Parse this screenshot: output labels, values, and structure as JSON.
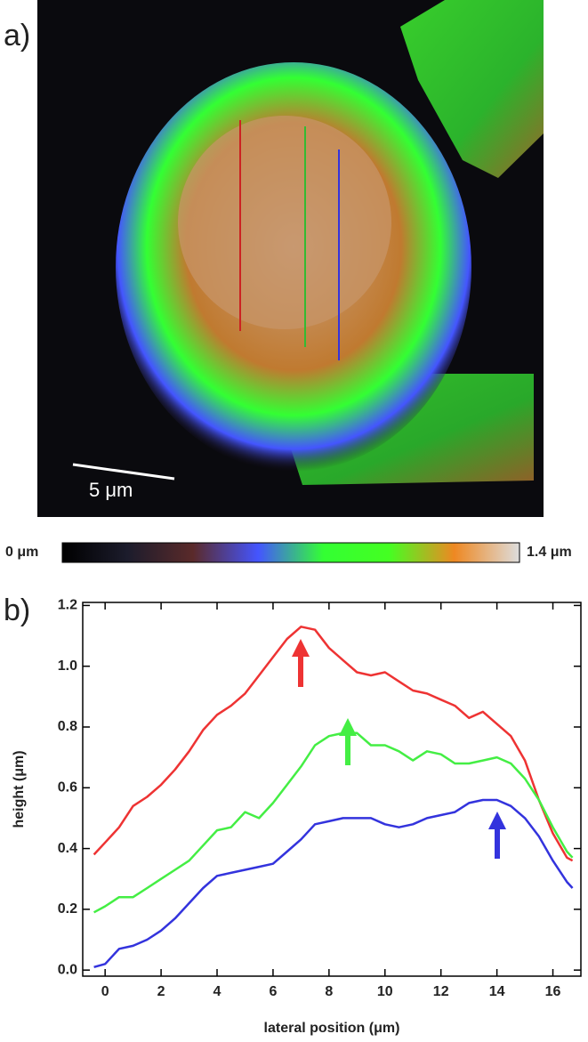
{
  "chart_data": [
    {
      "type": "image",
      "panel_label": "a)",
      "scale_bar_label": "5 μm",
      "colorbar": {
        "ticks": [
          {
            "value": 0,
            "label": "0 μm"
          },
          {
            "value": 1.4,
            "label": "1.4 μm"
          }
        ],
        "colors": [
          "#000000",
          "#1c1c2c",
          "#5a2a2a",
          "#4455ff",
          "#33ff33",
          "#44ff22",
          "#ee8822",
          "#dddddd"
        ]
      }
    },
    {
      "type": "line",
      "panel_label": "b)",
      "x_label": "lateral position (μm)",
      "y_label": "height (μm)",
      "x": [
        -0.4,
        0,
        0.5,
        1,
        1.5,
        2,
        2.5,
        3,
        3.5,
        4,
        4.5,
        5,
        5.5,
        6,
        6.5,
        7,
        7.5,
        8,
        8.5,
        9,
        9.5,
        10,
        10.5,
        11,
        11.5,
        12,
        12.5,
        13,
        13.5,
        14,
        14.5,
        15,
        15.5,
        16,
        16.5,
        16.7
      ],
      "series": [
        {
          "color": "#ee3333",
          "values": [
            0.38,
            0.42,
            0.47,
            0.54,
            0.57,
            0.61,
            0.66,
            0.72,
            0.79,
            0.84,
            0.87,
            0.91,
            0.97,
            1.03,
            1.09,
            1.13,
            1.12,
            1.06,
            1.02,
            0.98,
            0.97,
            0.98,
            0.95,
            0.92,
            0.91,
            0.89,
            0.87,
            0.83,
            0.85,
            0.81,
            0.77,
            0.69,
            0.56,
            0.45,
            0.37,
            0.36
          ]
        },
        {
          "color": "#44ee44",
          "values": [
            0.19,
            0.21,
            0.24,
            0.24,
            0.27,
            0.3,
            0.33,
            0.36,
            0.41,
            0.46,
            0.47,
            0.52,
            0.5,
            0.55,
            0.61,
            0.67,
            0.74,
            0.77,
            0.78,
            0.78,
            0.74,
            0.74,
            0.72,
            0.69,
            0.72,
            0.71,
            0.68,
            0.68,
            0.69,
            0.7,
            0.68,
            0.63,
            0.56,
            0.47,
            0.39,
            0.37
          ]
        },
        {
          "color": "#3333dd",
          "values": [
            0.01,
            0.02,
            0.07,
            0.08,
            0.1,
            0.13,
            0.17,
            0.22,
            0.27,
            0.31,
            0.32,
            0.33,
            0.34,
            0.35,
            0.39,
            0.43,
            0.48,
            0.49,
            0.5,
            0.5,
            0.5,
            0.48,
            0.47,
            0.48,
            0.5,
            0.51,
            0.52,
            0.55,
            0.56,
            0.56,
            0.54,
            0.5,
            0.44,
            0.36,
            0.29,
            0.27
          ]
        }
      ],
      "xlim": [
        -0.8,
        17
      ],
      "ylim": [
        -0.02,
        1.21
      ],
      "xticks": [
        0,
        2,
        4,
        6,
        8,
        10,
        12,
        14,
        16
      ],
      "yticks": [
        {
          "value": 0,
          "label": "0.0"
        },
        0.2,
        0.4,
        0.6,
        0.8,
        {
          "value": 1,
          "label": "1.0"
        },
        1.2
      ]
    }
  ]
}
